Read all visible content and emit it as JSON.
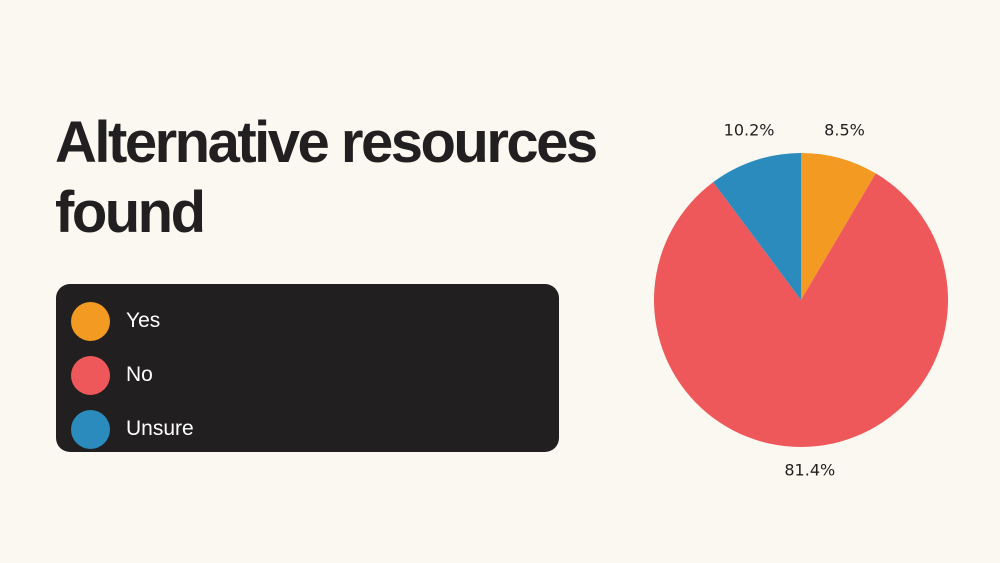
{
  "title": "Alternative resources found",
  "colors": {
    "background": "#fbf8f1",
    "legend_background": "#211f20",
    "yes": "#f29a21",
    "no": "#ee585a",
    "unsure": "#2b8bbd"
  },
  "legend": {
    "items": [
      {
        "label": "Yes",
        "color": "#f29a21"
      },
      {
        "label": "No",
        "color": "#ee585a"
      },
      {
        "label": "Unsure",
        "color": "#2b8bbd"
      }
    ]
  },
  "chart_data": {
    "type": "pie",
    "title": "Alternative resources found",
    "slices": [
      {
        "label": "Yes",
        "value": 8.5,
        "value_label": "8.5%",
        "color": "#f29a21"
      },
      {
        "label": "No",
        "value": 81.4,
        "value_label": "81.4%",
        "color": "#ee585a"
      },
      {
        "label": "Unsure",
        "value": 10.2,
        "value_label": "10.2%",
        "color": "#2b8bbd"
      }
    ],
    "start": "top",
    "direction": "clockwise",
    "legend_position": "left"
  }
}
